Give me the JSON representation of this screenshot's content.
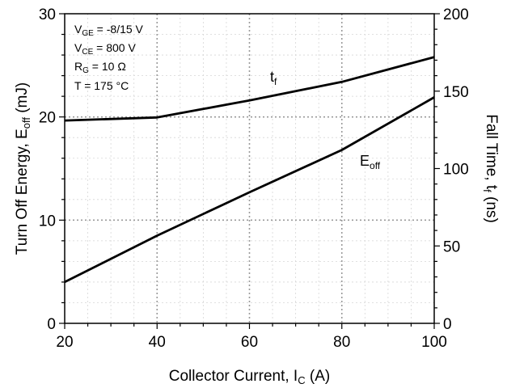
{
  "chart_data": {
    "type": "line",
    "xlabel": {
      "main": "Collector Current, I",
      "sub": "C",
      "tail": " (A)"
    },
    "ylabel_left": {
      "main": "Turn Off Energy, E",
      "sub": "off",
      "tail": " (mJ)"
    },
    "ylabel_right": {
      "main": "Fall Time, t",
      "sub": "f",
      "tail": " (ns)"
    },
    "xlim": [
      20,
      100
    ],
    "ylim_left": [
      0,
      30
    ],
    "ylim_right": [
      0,
      200
    ],
    "x_ticks": [
      "20",
      "40",
      "60",
      "80",
      "100"
    ],
    "y_left_ticks": [
      "0",
      "10",
      "20",
      "30"
    ],
    "y_right_ticks": [
      "0",
      "50",
      "100",
      "150",
      "200"
    ],
    "grid": true,
    "conditions": [
      {
        "main": "V",
        "sub": "GE",
        "tail": " = -8/15 V"
      },
      {
        "main": "V",
        "sub": "CE",
        "tail": " = 800 V"
      },
      {
        "main": "R",
        "sub": "G",
        "tail": " = 10 Ω"
      },
      {
        "main": "T = 175 °C",
        "sub": "",
        "tail": ""
      }
    ],
    "series": [
      {
        "name": "E_off",
        "label": {
          "main": "E",
          "sub": "off"
        },
        "axis": "left",
        "x": [
          20,
          40,
          60,
          80,
          100
        ],
        "values": [
          4.0,
          8.5,
          12.7,
          16.8,
          21.9
        ]
      },
      {
        "name": "t_f",
        "label": {
          "main": "t",
          "sub": "f"
        },
        "axis": "right",
        "x": [
          20,
          40,
          60,
          80,
          100
        ],
        "values": [
          131,
          133,
          144,
          156,
          172
        ]
      }
    ]
  }
}
